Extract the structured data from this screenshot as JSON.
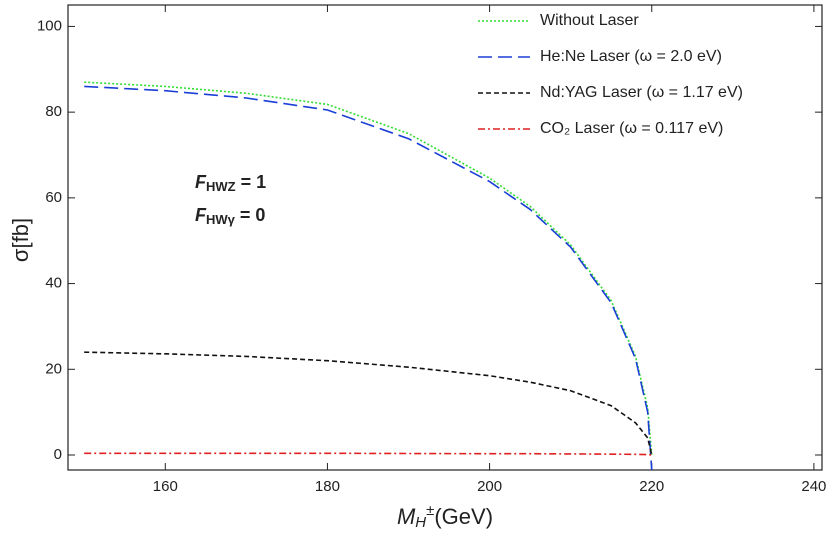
{
  "chart_data": {
    "type": "line",
    "x_label": {
      "main": "M",
      "sub": "H",
      "sup": "±",
      "unit": "(GeV)"
    },
    "y_label": "σ[fb]",
    "annotations": [
      {
        "main": "F",
        "sub": "HWZ",
        "rest": " = 1"
      },
      {
        "main": "F",
        "sub": "HWγ",
        "rest": " = 0"
      }
    ],
    "x": [
      150,
      160,
      170,
      180,
      190,
      200,
      205,
      210,
      215,
      218,
      219.5,
      220
    ],
    "series": [
      {
        "name": "Without Laser",
        "color": "#33dd33",
        "style": "dotted",
        "values": [
          87,
          86,
          84.4,
          81.8,
          75,
          64.6,
          58,
          49,
          36,
          23,
          11,
          0
        ]
      },
      {
        "name": "He:Ne Laser (ω = 2.0 eV)",
        "color": "#1a3fd6",
        "style": "long-dash",
        "values": [
          86,
          85,
          83.3,
          80.5,
          73.8,
          63.8,
          57.3,
          48.5,
          35.5,
          22.5,
          10,
          -3.5
        ]
      },
      {
        "name": "Nd:YAG Laser (ω = 1.17 eV)",
        "color": "#111111",
        "style": "dash",
        "values": [
          24,
          23.6,
          23,
          22,
          20.5,
          18.5,
          17,
          15,
          11.5,
          7.5,
          4,
          0
        ]
      },
      {
        "name": "CO₂ Laser (ω = 0.117 eV)",
        "color": "#e02020",
        "style": "dash-dot",
        "values": [
          0.4,
          0.4,
          0.4,
          0.4,
          0.35,
          0.3,
          0.3,
          0.25,
          0.2,
          0.15,
          0.1,
          0
        ]
      }
    ],
    "xlim": [
      148,
      241
    ],
    "xticks": [
      160,
      180,
      200,
      220,
      240
    ],
    "ylim": [
      -3.5,
      105
    ],
    "yticks": [
      0,
      20,
      40,
      60,
      80,
      100
    ],
    "legend": "top-right"
  }
}
